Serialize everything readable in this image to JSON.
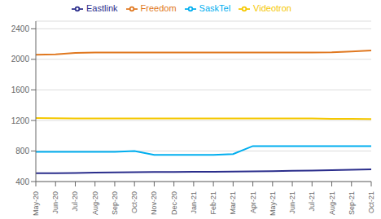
{
  "chart_data": {
    "type": "line",
    "categories": [
      "May-20",
      "Jun-20",
      "Jul-20",
      "Aug-20",
      "Sep-20",
      "Oct-20",
      "Nov-20",
      "Dec-20",
      "Jan-21",
      "Feb-21",
      "Mar-21",
      "Apr-21",
      "May-21",
      "Jun-21",
      "Jul-21",
      "Aug-21",
      "Sep-21",
      "Oct-21"
    ],
    "series": [
      {
        "name": "Freedom",
        "color": "#E07820",
        "values": [
          2060,
          2065,
          2085,
          2090,
          2090,
          2090,
          2090,
          2090,
          2090,
          2090,
          2090,
          2090,
          2090,
          2090,
          2090,
          2092,
          2102,
          2115
        ]
      },
      {
        "name": "Videotron",
        "color": "#F5C800",
        "values": [
          1232,
          1228,
          1226,
          1225,
          1225,
          1225,
          1225,
          1225,
          1225,
          1225,
          1225,
          1225,
          1225,
          1225,
          1225,
          1222,
          1220,
          1218
        ]
      },
      {
        "name": "SaskTel",
        "color": "#00AEEF",
        "values": [
          790,
          790,
          790,
          790,
          790,
          800,
          750,
          750,
          750,
          750,
          760,
          865,
          865,
          865,
          865,
          865,
          865,
          865
        ]
      },
      {
        "name": "Eastlink",
        "color": "#2B2E8C",
        "values": [
          510,
          510,
          513,
          516,
          520,
          523,
          525,
          526,
          527,
          528,
          530,
          532,
          535,
          540,
          545,
          550,
          555,
          560
        ]
      }
    ],
    "ylim": [
      400,
      2500
    ],
    "yticks": [
      400,
      800,
      1200,
      1600,
      2000,
      2400
    ],
    "grid": true,
    "legend": "top"
  }
}
